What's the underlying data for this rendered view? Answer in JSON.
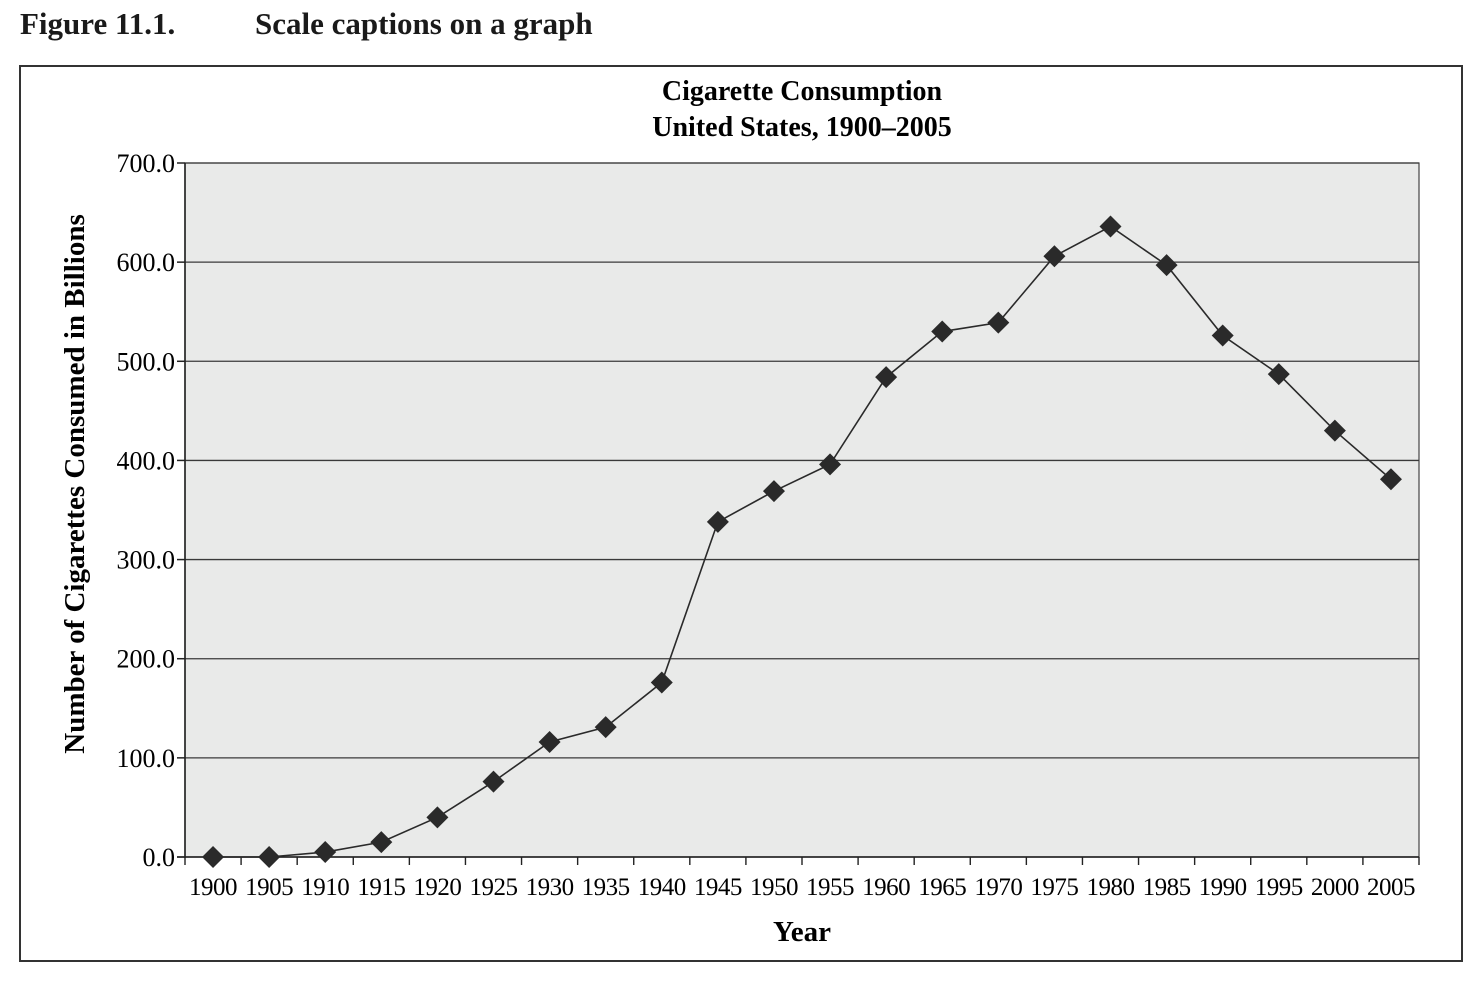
{
  "figure": {
    "number": "Figure 11.1.",
    "caption": "Scale captions on a graph"
  },
  "chart_data": {
    "type": "line",
    "title": "Cigarette Consumption",
    "subtitle": "United States, 1900–2005",
    "xlabel": "Year",
    "ylabel": "Number of Cigarettes Consumed in Billions",
    "x_ticks": [
      "1900",
      "1905",
      "1910",
      "1915",
      "1920",
      "1925",
      "1930",
      "1935",
      "1940",
      "1945",
      "1950",
      "1955",
      "1960",
      "1965",
      "1970",
      "1975",
      "1980",
      "1985",
      "1990",
      "1995",
      "2000",
      "2005"
    ],
    "y_ticks": [
      "0.0",
      "100.0",
      "200.0",
      "300.0",
      "400.0",
      "500.0",
      "600.0",
      "700.0"
    ],
    "ylim": [
      0,
      700
    ],
    "xlim": [
      1900,
      2005
    ],
    "grid": "horizontal",
    "marker": "diamond",
    "series": [
      {
        "x": [
          1900,
          1905,
          1910,
          1915,
          1920,
          1925,
          1930,
          1935,
          1940,
          1945,
          1950,
          1955,
          1960,
          1965,
          1970,
          1975,
          1980,
          1985,
          1990,
          1995,
          2000,
          2005
        ],
        "values": [
          0.0,
          0.0,
          5.0,
          15.0,
          40.0,
          76.0,
          116.0,
          131.0,
          176.0,
          338.0,
          369.0,
          396.0,
          484.0,
          530.0,
          539.0,
          606.0,
          636.0,
          597.0,
          526.0,
          487.0,
          430.0,
          381.0
        ]
      }
    ],
    "colors": {
      "plot_background": "#e9eae9",
      "line": "#2a2a2a",
      "marker": "#2a2a2a",
      "grid": "#3a3a3a"
    }
  }
}
